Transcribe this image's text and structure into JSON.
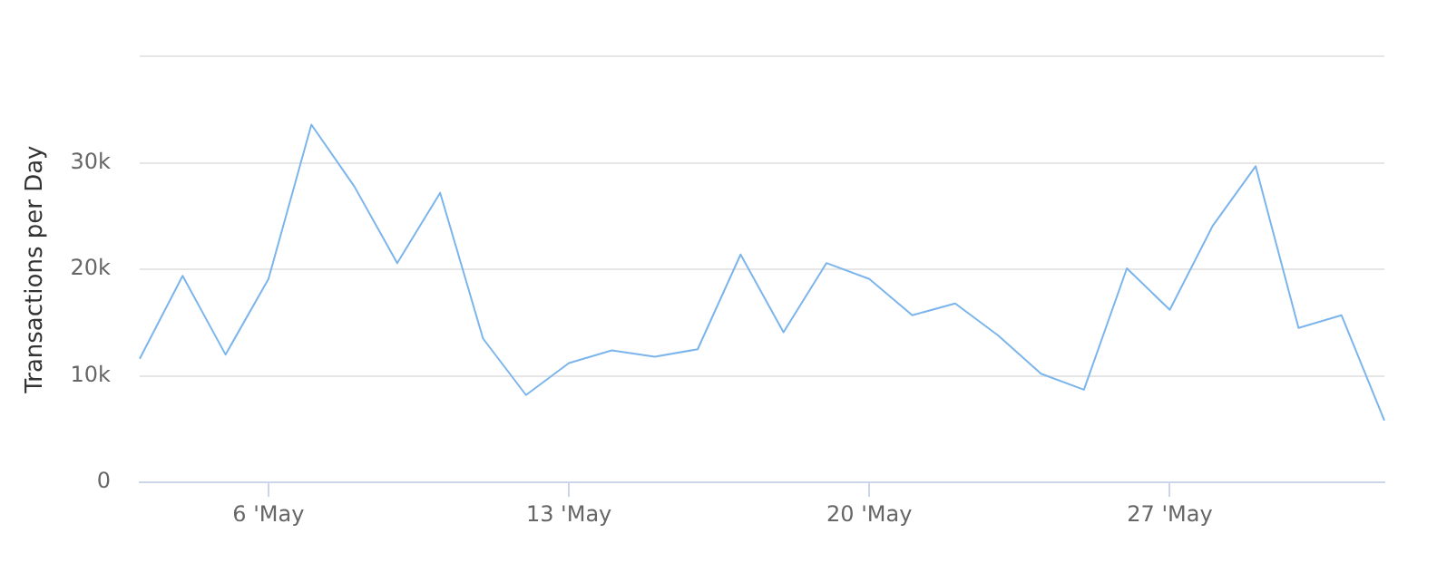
{
  "chart_data": {
    "type": "line",
    "ylabel": "Transactions per Day",
    "categories": [
      null,
      null,
      null,
      "6 'May",
      null,
      null,
      null,
      null,
      null,
      null,
      "13 'May",
      null,
      null,
      null,
      null,
      null,
      null,
      "20 'May",
      null,
      null,
      null,
      null,
      null,
      null,
      "27 'May",
      null,
      null,
      null,
      null,
      null
    ],
    "series": [
      {
        "color": "#7cb5ec",
        "values": [
          11600,
          19400,
          12000,
          19100,
          33600,
          27800,
          20600,
          27200,
          13500,
          8200,
          11200,
          12400,
          11800,
          12500,
          21400,
          14100,
          20600,
          19100,
          15700,
          16800,
          13800,
          10200,
          8700,
          20100,
          16200,
          24100,
          29700,
          14500,
          15700,
          5800
        ]
      }
    ],
    "ylim": [
      0,
      40000
    ],
    "yticks": [
      0,
      {
        "value": 10000,
        "label": "10k"
      },
      {
        "value": 20000,
        "label": "20k"
      },
      {
        "value": 30000,
        "label": "30k"
      },
      {
        "value": 40000,
        "label": null
      }
    ],
    "grid": "y",
    "legend": false,
    "marker": "none",
    "line_style": "solid"
  }
}
